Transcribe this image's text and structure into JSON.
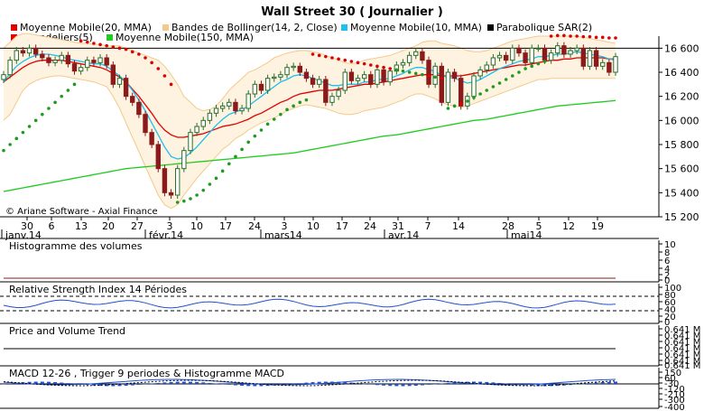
{
  "title": "Wall Street 30  ( Journalier )",
  "watermark": "© Ariane Software - Axial Finance",
  "legend": [
    {
      "label": "Moyenne Mobile(20, MMA)",
      "color": "#e00000"
    },
    {
      "label": "Bandes de Bollinger(14, 2, Close)",
      "color": "#f5c98a"
    },
    {
      "label": "Moyenne Mobile(10, MMA)",
      "color": "#1ec0f0"
    },
    {
      "label": "Parabolique SAR(2)",
      "color": "#000000"
    },
    {
      "label": "Chandeliers(5)",
      "color": "#e00000"
    },
    {
      "label": "Moyenne Mobile(150, MMA)",
      "color": "#22cc22"
    }
  ],
  "x_axis": {
    "day_ticks": [
      "30",
      "6",
      "13",
      "20",
      "27",
      "3",
      "10",
      "17",
      "24",
      "3",
      "10",
      "17",
      "24",
      "31",
      "7",
      "14",
      "28",
      "5",
      "12",
      "19"
    ],
    "month_labels": [
      "janv.14",
      "févr.14",
      "mars14",
      "avr.14",
      "mai14"
    ]
  },
  "panels": {
    "volume": {
      "title": "Histogramme des volumes",
      "ticks": [
        "10",
        "8",
        "6",
        "4",
        "2",
        "0"
      ]
    },
    "rsi": {
      "title": "Relative Strength Index 14 Périodes",
      "ticks": [
        "100",
        "80",
        "60",
        "40",
        "20",
        "0"
      ]
    },
    "pvt": {
      "title": "Price and Volume Trend",
      "ticks": [
        "0.641 M",
        "0.641 M",
        "0.641 M",
        "0.641 M",
        "0.641 M",
        "0.641 M",
        "0.641 M"
      ]
    },
    "macd": {
      "title": "MACD 12-26 , Trigger 9 periodes & Histogramme MACD",
      "ticks": [
        "150",
        "60",
        "-30",
        "-120",
        "-210",
        "-300",
        "-400"
      ]
    }
  },
  "colors": {
    "up": "#2b6e2b",
    "down": "#8b1a1a",
    "grid": "#000000",
    "band_fill": "#fdf3e0"
  },
  "chart_data": {
    "type": "candlestick",
    "title": "Wall Street 30  ( Journalier )",
    "ylim": [
      15200,
      16700
    ],
    "yticks": [
      15200,
      15400,
      15600,
      15800,
      16000,
      16200,
      16400,
      16600
    ],
    "reference_line": 16600,
    "close": [
      16380,
      16500,
      16580,
      16560,
      16600,
      16550,
      16520,
      16480,
      16500,
      16540,
      16470,
      16410,
      16440,
      16500,
      16480,
      16520,
      16460,
      16300,
      16350,
      16200,
      16150,
      16050,
      15900,
      15800,
      15600,
      15400,
      15380,
      15600,
      15750,
      15900,
      15950,
      16000,
      16060,
      16100,
      16120,
      16150,
      16080,
      16100,
      16220,
      16300,
      16250,
      16350,
      16360,
      16380,
      16440,
      16450,
      16400,
      16350,
      16300,
      16340,
      16150,
      16200,
      16250,
      16400,
      16330,
      16350,
      16380,
      16300,
      16420,
      16320,
      16410,
      16460,
      16480,
      16540,
      16570,
      16500,
      16300,
      16450,
      16150,
      16400,
      16350,
      16120,
      16200,
      16370,
      16420,
      16460,
      16520,
      16540,
      16500,
      16600,
      16560,
      16480,
      16600,
      16600,
      16500,
      16560,
      16620,
      16550,
      16580,
      16600,
      16450,
      16580,
      16450,
      16480,
      16400,
      16530
    ],
    "ma20": [
      16320,
      16360,
      16400,
      16440,
      16470,
      16490,
      16500,
      16500,
      16500,
      16500,
      16490,
      16480,
      16470,
      16460,
      16450,
      16440,
      16420,
      16390,
      16360,
      16320,
      16260,
      16200,
      16130,
      16060,
      15980,
      15920,
      15880,
      15860,
      15860,
      15870,
      15880,
      15890,
      15910,
      15930,
      15950,
      15960,
      15970,
      15990,
      16010,
      16040,
      16060,
      16090,
      16120,
      16150,
      16170,
      16200,
      16220,
      16230,
      16240,
      16250,
      16250,
      16250,
      16260,
      16270,
      16280,
      16290,
      16300,
      16300,
      16310,
      16320,
      16330,
      16340,
      16350,
      16360,
      16370,
      16380,
      16380,
      16380,
      16370,
      16370,
      16370,
      16370,
      16380,
      16390,
      16400,
      16410,
      16420,
      16430,
      16440,
      16450,
      16460,
      16460,
      16470,
      16480,
      16490,
      16500,
      16500,
      16510,
      16510,
      16520,
      16520,
      16520,
      16520,
      16520,
      16510,
      16510
    ],
    "ma10": [
      16320,
      16390,
      16450,
      16490,
      16520,
      16540,
      16550,
      16550,
      16540,
      16530,
      16510,
      16500,
      16490,
      16480,
      16470,
      16470,
      16450,
      16410,
      16370,
      16320,
      16250,
      16170,
      16080,
      15980,
      15880,
      15780,
      15700,
      15680,
      15690,
      15730,
      15780,
      15840,
      15900,
      15960,
      16010,
      16050,
      16070,
      16090,
      16120,
      16160,
      16200,
      16240,
      16280,
      16320,
      16340,
      16370,
      16380,
      16370,
      16350,
      16330,
      16310,
      16290,
      16290,
      16300,
      16300,
      16300,
      16320,
      16320,
      16340,
      16340,
      16350,
      16370,
      16390,
      16420,
      16440,
      16440,
      16420,
      16410,
      16370,
      16360,
      16350,
      16330,
      16310,
      16320,
      16340,
      16370,
      16400,
      16430,
      16450,
      16470,
      16490,
      16500,
      16510,
      16530,
      16530,
      16540,
      16550,
      16550,
      16560,
      16570,
      16560,
      16550,
      16540,
      16530,
      16510,
      16500
    ],
    "ma150": [
      15410,
      15420,
      15430,
      15440,
      15450,
      15460,
      15470,
      15480,
      15490,
      15500,
      15510,
      15520,
      15530,
      15540,
      15550,
      15560,
      15570,
      15580,
      15590,
      15600,
      15605,
      15610,
      15615,
      15620,
      15625,
      15630,
      15635,
      15640,
      15645,
      15650,
      15655,
      15660,
      15665,
      15670,
      15675,
      15680,
      15685,
      15690,
      15695,
      15700,
      15705,
      15710,
      15715,
      15720,
      15725,
      15730,
      15740,
      15750,
      15760,
      15770,
      15780,
      15790,
      15800,
      15810,
      15820,
      15830,
      15840,
      15850,
      15860,
      15870,
      15875,
      15880,
      15890,
      15900,
      15910,
      15920,
      15930,
      15940,
      15950,
      15960,
      15970,
      15980,
      15990,
      16000,
      16005,
      16010,
      16020,
      16030,
      16040,
      16050,
      16060,
      16070,
      16080,
      16090,
      16100,
      16110,
      16120,
      16125,
      16130,
      16135,
      16140,
      16145,
      16150,
      16155,
      16160,
      16165
    ],
    "bollinger_upper": [
      16600,
      16650,
      16700,
      16720,
      16720,
      16710,
      16700,
      16690,
      16680,
      16670,
      16660,
      16650,
      16640,
      16640,
      16630,
      16630,
      16620,
      16620,
      16620,
      16600,
      16580,
      16560,
      16540,
      16520,
      16500,
      16450,
      16380,
      16300,
      16200,
      16150,
      16100,
      16080,
      16090,
      16120,
      16180,
      16250,
      16300,
      16350,
      16400,
      16420,
      16450,
      16480,
      16520,
      16540,
      16560,
      16570,
      16580,
      16580,
      16570,
      16560,
      16540,
      16520,
      16500,
      16480,
      16470,
      16480,
      16500,
      16510,
      16520,
      16530,
      16540,
      16560,
      16580,
      16600,
      16620,
      16650,
      16660,
      16660,
      16640,
      16630,
      16620,
      16600,
      16580,
      16570,
      16570,
      16580,
      16600,
      16620,
      16640,
      16660,
      16670,
      16680,
      16690,
      16700,
      16700,
      16700,
      16700,
      16700,
      16700,
      16700,
      16690,
      16680,
      16670,
      16660,
      16650,
      16640
    ],
    "bollinger_lower": [
      16000,
      16050,
      16150,
      16250,
      16300,
      16330,
      16350,
      16360,
      16370,
      16370,
      16360,
      16350,
      16340,
      16330,
      16320,
      16300,
      16280,
      16200,
      16100,
      15980,
      15860,
      15740,
      15620,
      15500,
      15380,
      15300,
      15270,
      15300,
      15380,
      15450,
      15520,
      15580,
      15640,
      15700,
      15760,
      15800,
      15850,
      15880,
      15920,
      15950,
      15980,
      16000,
      16020,
      16050,
      16080,
      16100,
      16120,
      16130,
      16120,
      16110,
      16100,
      16080,
      16060,
      16050,
      16050,
      16060,
      16080,
      16090,
      16100,
      16110,
      16130,
      16150,
      16170,
      16200,
      16220,
      16220,
      16200,
      16180,
      16150,
      16130,
      16120,
      16110,
      16120,
      16140,
      16160,
      16180,
      16200,
      16220,
      16240,
      16260,
      16280,
      16300,
      16320,
      16340,
      16340,
      16350,
      16350,
      16350,
      16350,
      16350,
      16350,
      16350,
      16350,
      16350,
      16350,
      16350
    ],
    "sar": [
      15750,
      15800,
      15850,
      15900,
      15950,
      16000,
      16050,
      16100,
      16150,
      16200,
      16250,
      16300,
      16660,
      16650,
      16640,
      16630,
      16620,
      16610,
      16600,
      16590,
      16570,
      16550,
      16520,
      16480,
      16430,
      16370,
      16300,
      15320,
      15330,
      15350,
      15380,
      15420,
      15470,
      15520,
      15580,
      15640,
      15700,
      15760,
      15820,
      15870,
      15920,
      15970,
      16010,
      16050,
      16090,
      16120,
      16150,
      16170,
      16550,
      16540,
      16530,
      16520,
      16510,
      16500,
      16490,
      16480,
      16470,
      16460,
      16450,
      16440,
      16430,
      16420,
      16410,
      16400,
      16390,
      16380,
      16370,
      16360,
      16350,
      16100,
      16120,
      16140,
      16160,
      16190,
      16220,
      16250,
      16280,
      16310,
      16340,
      16370,
      16400,
      16430,
      16450,
      16470,
      16490,
      16700,
      16705,
      16705,
      16700,
      16700,
      16695,
      16695,
      16690,
      16690,
      16685,
      16685
    ]
  }
}
